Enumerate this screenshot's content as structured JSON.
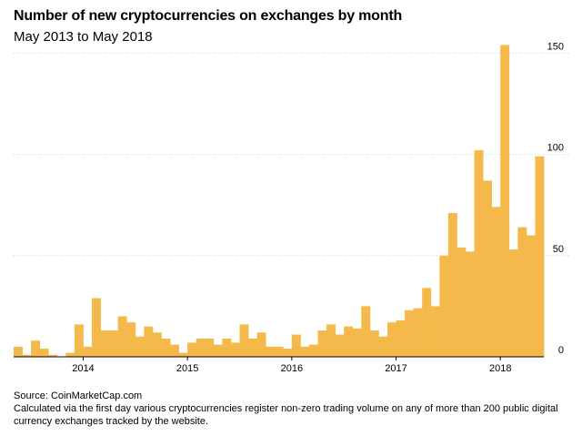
{
  "title": "Number of new cryptocurrencies on exchanges by month",
  "subtitle": "May 2013 to May 2018",
  "source": "Source: CoinMarketCap.com",
  "note": "Calculated via the first day various cryptocurrencies register non-zero trading volume on any of more than 200 public digital currency exchanges tracked by the website.",
  "colors": {
    "bar": "#F5B94B",
    "axis": "#000000",
    "grid": "#BDBDBD"
  },
  "chart_data": {
    "type": "bar",
    "title": "Number of new cryptocurrencies on exchanges by month",
    "subtitle": "May 2013 to May 2018",
    "xlabel": "",
    "ylabel": "",
    "ylim": [
      0,
      160
    ],
    "yticks": [
      0,
      50,
      100,
      150
    ],
    "ytick_labels": [
      "0",
      "50",
      "100",
      "150"
    ],
    "x_tick_labels": [
      "2014",
      "2015",
      "2016",
      "2017",
      "2018"
    ],
    "x_tick_category_index": [
      8,
      20,
      32,
      44,
      56
    ],
    "grid": true,
    "start": "2013-05",
    "categories": [
      "2013-05",
      "2013-06",
      "2013-07",
      "2013-08",
      "2013-09",
      "2013-10",
      "2013-11",
      "2013-12",
      "2014-01",
      "2014-02",
      "2014-03",
      "2014-04",
      "2014-05",
      "2014-06",
      "2014-07",
      "2014-08",
      "2014-09",
      "2014-10",
      "2014-11",
      "2014-12",
      "2015-01",
      "2015-02",
      "2015-03",
      "2015-04",
      "2015-05",
      "2015-06",
      "2015-07",
      "2015-08",
      "2015-09",
      "2015-10",
      "2015-11",
      "2015-12",
      "2016-01",
      "2016-02",
      "2016-03",
      "2016-04",
      "2016-05",
      "2016-06",
      "2016-07",
      "2016-08",
      "2016-09",
      "2016-10",
      "2016-11",
      "2016-12",
      "2017-01",
      "2017-02",
      "2017-03",
      "2017-04",
      "2017-05",
      "2017-06",
      "2017-07",
      "2017-08",
      "2017-09",
      "2017-10",
      "2017-11",
      "2017-12",
      "2018-01",
      "2018-02",
      "2018-03",
      "2018-04",
      "2018-05"
    ],
    "values": [
      5,
      1,
      8,
      4,
      1,
      0,
      2,
      16,
      5,
      29,
      13,
      13,
      20,
      17,
      10,
      15,
      12,
      9,
      6,
      2,
      7,
      9,
      9,
      6,
      9,
      7,
      16,
      9,
      12,
      5,
      5,
      4,
      11,
      5,
      6,
      13,
      16,
      11,
      15,
      14,
      25,
      13,
      10,
      17,
      18,
      23,
      24,
      34,
      25,
      50,
      71,
      54,
      52,
      102,
      87,
      74,
      154,
      53,
      64,
      60,
      99
    ]
  }
}
